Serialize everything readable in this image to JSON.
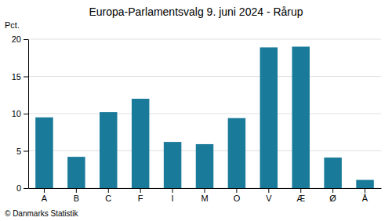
{
  "chart_data": {
    "type": "bar",
    "title": "Europa-Parlamentsvalg 9. juni 2024 - Rårup",
    "ylabel": "Pct.",
    "annotations": [
      "© Danmarks Statistik"
    ],
    "categories": [
      "A",
      "B",
      "C",
      "F",
      "I",
      "M",
      "O",
      "V",
      "Æ",
      "Ø",
      "Å"
    ],
    "values": [
      9.5,
      4.2,
      10.2,
      12.0,
      6.2,
      5.9,
      9.4,
      18.9,
      19.0,
      4.1,
      1.1
    ],
    "color": "#1a7a9a",
    "ylim": [
      0,
      20
    ],
    "yticks": [
      0,
      5,
      10,
      15,
      20
    ],
    "grid": true
  }
}
